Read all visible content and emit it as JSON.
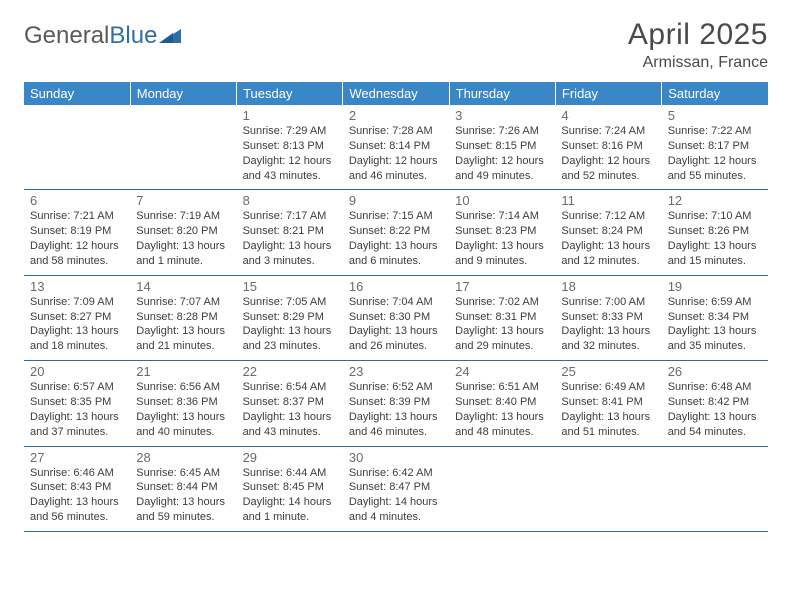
{
  "brand": {
    "part1": "General",
    "part2": "Blue"
  },
  "title": "April 2025",
  "location": "Armissan, France",
  "colors": {
    "header_bg": "#3a87c8",
    "header_text": "#ffffff",
    "row_border": "#2f6aa0",
    "brand_gray": "#5a5a5a",
    "brand_blue": "#2f6fa8",
    "text": "#3d3d3d",
    "daynum": "#6b6b6b"
  },
  "weekdays": [
    "Sunday",
    "Monday",
    "Tuesday",
    "Wednesday",
    "Thursday",
    "Friday",
    "Saturday"
  ],
  "weeks": [
    [
      null,
      null,
      {
        "day": "1",
        "sunrise": "7:29 AM",
        "sunset": "8:13 PM",
        "daylight": "12 hours and 43 minutes."
      },
      {
        "day": "2",
        "sunrise": "7:28 AM",
        "sunset": "8:14 PM",
        "daylight": "12 hours and 46 minutes."
      },
      {
        "day": "3",
        "sunrise": "7:26 AM",
        "sunset": "8:15 PM",
        "daylight": "12 hours and 49 minutes."
      },
      {
        "day": "4",
        "sunrise": "7:24 AM",
        "sunset": "8:16 PM",
        "daylight": "12 hours and 52 minutes."
      },
      {
        "day": "5",
        "sunrise": "7:22 AM",
        "sunset": "8:17 PM",
        "daylight": "12 hours and 55 minutes."
      }
    ],
    [
      {
        "day": "6",
        "sunrise": "7:21 AM",
        "sunset": "8:19 PM",
        "daylight": "12 hours and 58 minutes."
      },
      {
        "day": "7",
        "sunrise": "7:19 AM",
        "sunset": "8:20 PM",
        "daylight": "13 hours and 1 minute."
      },
      {
        "day": "8",
        "sunrise": "7:17 AM",
        "sunset": "8:21 PM",
        "daylight": "13 hours and 3 minutes."
      },
      {
        "day": "9",
        "sunrise": "7:15 AM",
        "sunset": "8:22 PM",
        "daylight": "13 hours and 6 minutes."
      },
      {
        "day": "10",
        "sunrise": "7:14 AM",
        "sunset": "8:23 PM",
        "daylight": "13 hours and 9 minutes."
      },
      {
        "day": "11",
        "sunrise": "7:12 AM",
        "sunset": "8:24 PM",
        "daylight": "13 hours and 12 minutes."
      },
      {
        "day": "12",
        "sunrise": "7:10 AM",
        "sunset": "8:26 PM",
        "daylight": "13 hours and 15 minutes."
      }
    ],
    [
      {
        "day": "13",
        "sunrise": "7:09 AM",
        "sunset": "8:27 PM",
        "daylight": "13 hours and 18 minutes."
      },
      {
        "day": "14",
        "sunrise": "7:07 AM",
        "sunset": "8:28 PM",
        "daylight": "13 hours and 21 minutes."
      },
      {
        "day": "15",
        "sunrise": "7:05 AM",
        "sunset": "8:29 PM",
        "daylight": "13 hours and 23 minutes."
      },
      {
        "day": "16",
        "sunrise": "7:04 AM",
        "sunset": "8:30 PM",
        "daylight": "13 hours and 26 minutes."
      },
      {
        "day": "17",
        "sunrise": "7:02 AM",
        "sunset": "8:31 PM",
        "daylight": "13 hours and 29 minutes."
      },
      {
        "day": "18",
        "sunrise": "7:00 AM",
        "sunset": "8:33 PM",
        "daylight": "13 hours and 32 minutes."
      },
      {
        "day": "19",
        "sunrise": "6:59 AM",
        "sunset": "8:34 PM",
        "daylight": "13 hours and 35 minutes."
      }
    ],
    [
      {
        "day": "20",
        "sunrise": "6:57 AM",
        "sunset": "8:35 PM",
        "daylight": "13 hours and 37 minutes."
      },
      {
        "day": "21",
        "sunrise": "6:56 AM",
        "sunset": "8:36 PM",
        "daylight": "13 hours and 40 minutes."
      },
      {
        "day": "22",
        "sunrise": "6:54 AM",
        "sunset": "8:37 PM",
        "daylight": "13 hours and 43 minutes."
      },
      {
        "day": "23",
        "sunrise": "6:52 AM",
        "sunset": "8:39 PM",
        "daylight": "13 hours and 46 minutes."
      },
      {
        "day": "24",
        "sunrise": "6:51 AM",
        "sunset": "8:40 PM",
        "daylight": "13 hours and 48 minutes."
      },
      {
        "day": "25",
        "sunrise": "6:49 AM",
        "sunset": "8:41 PM",
        "daylight": "13 hours and 51 minutes."
      },
      {
        "day": "26",
        "sunrise": "6:48 AM",
        "sunset": "8:42 PM",
        "daylight": "13 hours and 54 minutes."
      }
    ],
    [
      {
        "day": "27",
        "sunrise": "6:46 AM",
        "sunset": "8:43 PM",
        "daylight": "13 hours and 56 minutes."
      },
      {
        "day": "28",
        "sunrise": "6:45 AM",
        "sunset": "8:44 PM",
        "daylight": "13 hours and 59 minutes."
      },
      {
        "day": "29",
        "sunrise": "6:44 AM",
        "sunset": "8:45 PM",
        "daylight": "14 hours and 1 minute."
      },
      {
        "day": "30",
        "sunrise": "6:42 AM",
        "sunset": "8:47 PM",
        "daylight": "14 hours and 4 minutes."
      },
      null,
      null,
      null
    ]
  ],
  "labels": {
    "sunrise": "Sunrise:",
    "sunset": "Sunset:",
    "daylight": "Daylight:"
  }
}
